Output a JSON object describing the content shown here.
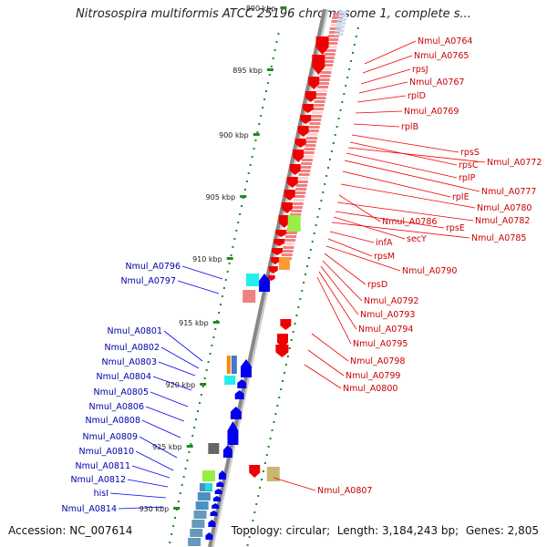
{
  "title": "Nitrosospira multiformis ATCC 25196 chromosome 1, complete s...",
  "footer": {
    "accession_label": "Accession:",
    "accession": "NC_007614",
    "topology_label": "Topology:",
    "topology": "circular",
    "length_label": "Length:",
    "length": "3,184,243 bp",
    "genes_label": "Genes:",
    "genes": "2,805"
  },
  "colors": {
    "backbone": "#888888",
    "forward_gene": "#ee0000",
    "reverse_gene": "#0000ee",
    "forward_label": "#cc0000",
    "reverse_label": "#0000aa",
    "tick": "#228822"
  },
  "scale_ticks": [
    {
      "label": "890 kbp"
    },
    {
      "label": "895 kbp"
    },
    {
      "label": "900 kbp"
    },
    {
      "label": "905 kbp"
    },
    {
      "label": "910 kbp"
    },
    {
      "label": "915 kbp"
    },
    {
      "label": "920 kbp"
    },
    {
      "label": "925 kbp"
    },
    {
      "label": "930 kbp"
    }
  ],
  "forward_labels": [
    "Nmul_A0764",
    "Nmul_A0765",
    "rpsJ",
    "Nmul_A0767",
    "rplD",
    "Nmul_A0769",
    "rplB",
    "rpsS",
    "rpsC",
    "Nmul_A0772",
    "rplP",
    "Nmul_A0777",
    "rplE",
    "Nmul_A0780",
    "Nmul_A0786",
    "Nmul_A0782",
    "rpsE",
    "secY",
    "Nmul_A0785",
    "infA",
    "rpsM",
    "Nmul_A0790",
    "rpsD",
    "Nmul_A0792",
    "Nmul_A0793",
    "Nmul_A0794",
    "Nmul_A0795",
    "Nmul_A0798",
    "Nmul_A0799",
    "Nmul_A0800",
    "Nmul_A0807"
  ],
  "reverse_labels": [
    "Nmul_A0796",
    "Nmul_A0797",
    "Nmul_A0801",
    "Nmul_A0802",
    "Nmul_A0803",
    "Nmul_A0804",
    "Nmul_A0805",
    "Nmul_A0806",
    "Nmul_A0808",
    "Nmul_A0809",
    "Nmul_A0810",
    "Nmul_A0811",
    "Nmul_A0812",
    "hisI",
    "Nmul_A0814"
  ]
}
